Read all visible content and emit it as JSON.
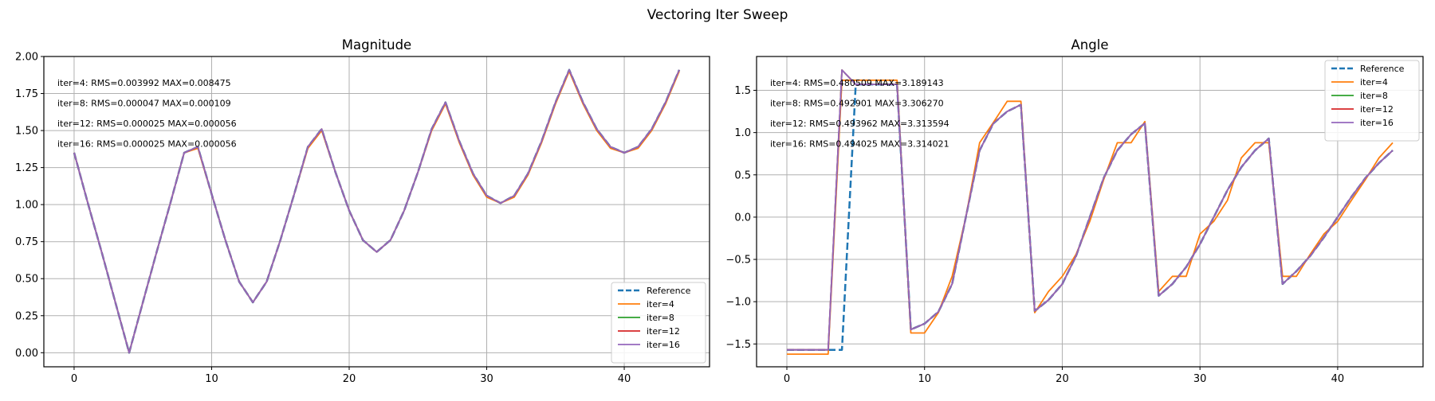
{
  "figure": {
    "title": "Vectoring Iter Sweep"
  },
  "colors": {
    "Reference": "#1f77b4",
    "iter=4": "#ff7f0e",
    "iter=8": "#2ca02c",
    "iter=12": "#d62728",
    "iter=16": "#9467bd",
    "grid": "#b0b0b0"
  },
  "chart_data": [
    {
      "type": "line",
      "title": "Magnitude",
      "xlabel": "",
      "ylabel": "",
      "xlim": [
        -2.2,
        46.2
      ],
      "ylim": [
        -0.095,
        2.0
      ],
      "xticks": [
        0,
        10,
        20,
        30,
        40
      ],
      "yticks": [
        0.0,
        0.25,
        0.5,
        0.75,
        1.0,
        1.25,
        1.5,
        1.75,
        2.0
      ],
      "ytick_labels": [
        "0.00",
        "0.25",
        "0.50",
        "0.75",
        "1.00",
        "1.25",
        "1.50",
        "1.75",
        "2.00"
      ],
      "grid": true,
      "legend": "lower-right",
      "annotations": [
        "iter=4: RMS=0.003992 MAX=0.008475",
        "iter=8: RMS=0.000047 MAX=0.000109",
        "iter=12: RMS=0.000025 MAX=0.000056",
        "iter=16: RMS=0.000025 MAX=0.000056"
      ],
      "series": [
        {
          "name": "Reference",
          "style": "dashed",
          "values": [
            1.35,
            1.01,
            0.68,
            0.34,
            0.0,
            0.34,
            0.68,
            1.01,
            1.35,
            1.39,
            1.07,
            0.76,
            0.48,
            0.34,
            0.48,
            0.76,
            1.07,
            1.39,
            1.51,
            1.22,
            0.96,
            0.76,
            0.68,
            0.76,
            0.96,
            1.22,
            1.51,
            1.69,
            1.43,
            1.21,
            1.06,
            1.01,
            1.06,
            1.21,
            1.43,
            1.69,
            1.91,
            1.69,
            1.51,
            1.39,
            1.35,
            1.39,
            1.51,
            1.69,
            1.91
          ]
        },
        {
          "name": "iter=4",
          "style": "solid",
          "values": [
            1.35,
            1.01,
            0.68,
            0.34,
            0.0,
            0.34,
            0.68,
            1.01,
            1.35,
            1.38,
            1.07,
            0.76,
            0.48,
            0.34,
            0.48,
            0.76,
            1.07,
            1.38,
            1.5,
            1.22,
            0.96,
            0.76,
            0.68,
            0.76,
            0.96,
            1.22,
            1.5,
            1.68,
            1.42,
            1.2,
            1.05,
            1.01,
            1.05,
            1.2,
            1.42,
            1.68,
            1.9,
            1.68,
            1.5,
            1.38,
            1.35,
            1.38,
            1.5,
            1.68,
            1.9
          ]
        },
        {
          "name": "iter=8",
          "style": "solid",
          "values": [
            1.35,
            1.01,
            0.68,
            0.34,
            0.0,
            0.34,
            0.68,
            1.01,
            1.35,
            1.39,
            1.07,
            0.76,
            0.48,
            0.34,
            0.48,
            0.76,
            1.07,
            1.39,
            1.51,
            1.22,
            0.96,
            0.76,
            0.68,
            0.76,
            0.96,
            1.22,
            1.51,
            1.69,
            1.43,
            1.21,
            1.06,
            1.01,
            1.06,
            1.21,
            1.43,
            1.69,
            1.91,
            1.69,
            1.51,
            1.39,
            1.35,
            1.39,
            1.51,
            1.69,
            1.91
          ]
        },
        {
          "name": "iter=12",
          "style": "solid",
          "values": [
            1.35,
            1.01,
            0.68,
            0.34,
            0.0,
            0.34,
            0.68,
            1.01,
            1.35,
            1.39,
            1.07,
            0.76,
            0.48,
            0.34,
            0.48,
            0.76,
            1.07,
            1.39,
            1.51,
            1.22,
            0.96,
            0.76,
            0.68,
            0.76,
            0.96,
            1.22,
            1.51,
            1.69,
            1.43,
            1.21,
            1.06,
            1.01,
            1.06,
            1.21,
            1.43,
            1.69,
            1.91,
            1.69,
            1.51,
            1.39,
            1.35,
            1.39,
            1.51,
            1.69,
            1.91
          ]
        },
        {
          "name": "iter=16",
          "style": "solid",
          "values": [
            1.35,
            1.01,
            0.68,
            0.34,
            0.0,
            0.34,
            0.68,
            1.01,
            1.35,
            1.39,
            1.07,
            0.76,
            0.48,
            0.34,
            0.48,
            0.76,
            1.07,
            1.39,
            1.51,
            1.22,
            0.96,
            0.76,
            0.68,
            0.76,
            0.96,
            1.22,
            1.51,
            1.69,
            1.43,
            1.21,
            1.06,
            1.01,
            1.06,
            1.21,
            1.43,
            1.69,
            1.91,
            1.69,
            1.51,
            1.39,
            1.35,
            1.39,
            1.51,
            1.69,
            1.91
          ]
        }
      ]
    },
    {
      "type": "line",
      "title": "Angle",
      "xlabel": "",
      "ylabel": "",
      "xlim": [
        -2.2,
        46.2
      ],
      "ylim": [
        -1.77,
        1.9
      ],
      "xticks": [
        0,
        10,
        20,
        30,
        40
      ],
      "yticks": [
        -1.5,
        -1.0,
        -0.5,
        0.0,
        0.5,
        1.0,
        1.5
      ],
      "ytick_labels": [
        "−1.5",
        "−1.0",
        "−0.5",
        "0.0",
        "0.5",
        "1.0",
        "1.5"
      ],
      "grid": true,
      "legend": "upper-right",
      "annotations": [
        "iter=4: RMS=0.480509 MAX=3.189143",
        "iter=8: RMS=0.492901 MAX=3.306270",
        "iter=12: RMS=0.493962 MAX=3.313594",
        "iter=16: RMS=0.494025 MAX=3.314021"
      ],
      "series": [
        {
          "name": "Reference",
          "style": "dashed",
          "values": [
            -1.57,
            -1.57,
            -1.57,
            -1.57,
            -1.57,
            1.57,
            1.57,
            1.57,
            1.57,
            -1.33,
            -1.26,
            -1.12,
            -0.79,
            0,
            0.79,
            1.11,
            1.25,
            1.33,
            -1.11,
            -0.98,
            -0.79,
            -0.46,
            0,
            0.46,
            0.79,
            0.98,
            1.11,
            -0.93,
            -0.79,
            -0.59,
            -0.32,
            0,
            0.32,
            0.59,
            0.79,
            0.93,
            -0.79,
            -0.64,
            -0.46,
            -0.24,
            0,
            0.24,
            0.46,
            0.64,
            0.79
          ]
        },
        {
          "name": "iter=4",
          "style": "solid",
          "values": [
            -1.62,
            -1.62,
            -1.62,
            -1.62,
            1.62,
            1.62,
            1.62,
            1.62,
            1.62,
            -1.37,
            -1.37,
            -1.13,
            -0.7,
            0,
            0.88,
            1.12,
            1.37,
            1.37,
            -1.13,
            -0.88,
            -0.7,
            -0.44,
            -0.05,
            0.44,
            0.88,
            0.88,
            1.13,
            -0.88,
            -0.7,
            -0.7,
            -0.2,
            -0.05,
            0.2,
            0.7,
            0.88,
            0.88,
            -0.7,
            -0.7,
            -0.44,
            -0.2,
            -0.05,
            0.2,
            0.44,
            0.7,
            0.88
          ]
        },
        {
          "name": "iter=8",
          "style": "solid",
          "values": [
            -1.57,
            -1.57,
            -1.57,
            -1.57,
            1.74,
            1.57,
            1.57,
            1.57,
            1.57,
            -1.33,
            -1.26,
            -1.12,
            -0.79,
            0,
            0.79,
            1.11,
            1.25,
            1.33,
            -1.11,
            -0.98,
            -0.79,
            -0.46,
            0,
            0.46,
            0.79,
            0.98,
            1.11,
            -0.93,
            -0.79,
            -0.59,
            -0.32,
            0,
            0.32,
            0.59,
            0.79,
            0.93,
            -0.79,
            -0.64,
            -0.46,
            -0.24,
            0,
            0.24,
            0.46,
            0.64,
            0.79
          ]
        },
        {
          "name": "iter=12",
          "style": "solid",
          "values": [
            -1.57,
            -1.57,
            -1.57,
            -1.57,
            1.74,
            1.57,
            1.57,
            1.57,
            1.57,
            -1.33,
            -1.26,
            -1.12,
            -0.79,
            0,
            0.79,
            1.11,
            1.25,
            1.33,
            -1.11,
            -0.98,
            -0.79,
            -0.46,
            0,
            0.46,
            0.79,
            0.98,
            1.11,
            -0.93,
            -0.79,
            -0.59,
            -0.32,
            0,
            0.32,
            0.59,
            0.79,
            0.93,
            -0.79,
            -0.64,
            -0.46,
            -0.24,
            0,
            0.24,
            0.46,
            0.64,
            0.79
          ]
        },
        {
          "name": "iter=16",
          "style": "solid",
          "values": [
            -1.57,
            -1.57,
            -1.57,
            -1.57,
            1.74,
            1.57,
            1.57,
            1.57,
            1.57,
            -1.33,
            -1.26,
            -1.12,
            -0.79,
            0,
            0.79,
            1.11,
            1.25,
            1.33,
            -1.11,
            -0.98,
            -0.79,
            -0.46,
            0,
            0.46,
            0.79,
            0.98,
            1.11,
            -0.93,
            -0.79,
            -0.59,
            -0.32,
            0,
            0.32,
            0.59,
            0.79,
            0.93,
            -0.79,
            -0.64,
            -0.46,
            -0.24,
            0,
            0.24,
            0.46,
            0.64,
            0.79
          ]
        }
      ]
    }
  ]
}
